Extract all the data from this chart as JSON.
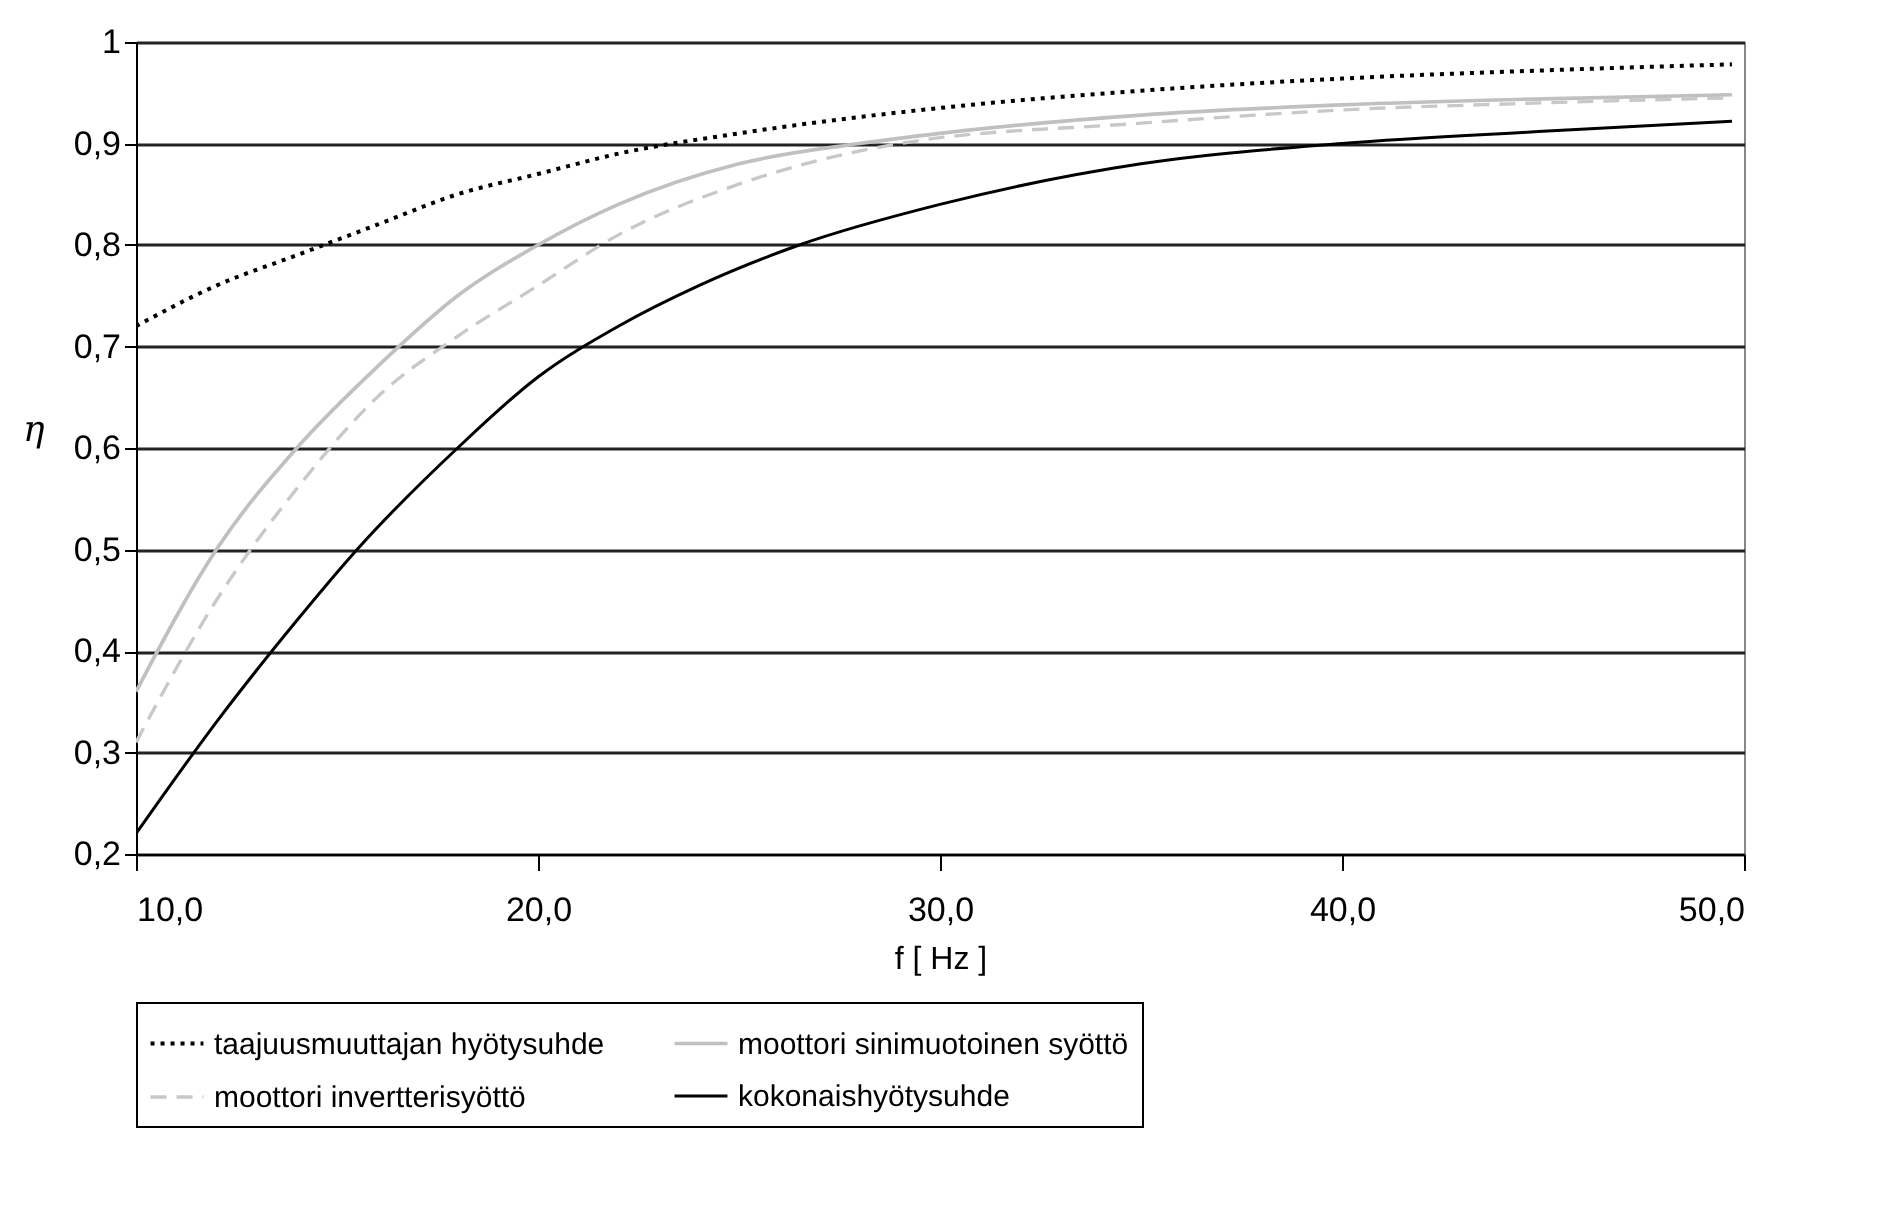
{
  "chart_data": {
    "type": "line",
    "xlabel": "f [ Hz ]",
    "ylabel": "η",
    "xlim": [
      10,
      50
    ],
    "ylim": [
      0.2,
      1
    ],
    "xticks": [
      {
        "value": 10,
        "label": "10,0"
      },
      {
        "value": 20,
        "label": "20,0"
      },
      {
        "value": 30,
        "label": "30,0"
      },
      {
        "value": 40,
        "label": "40,0"
      },
      {
        "value": 50,
        "label": "50,0"
      }
    ],
    "yticks": [
      {
        "value": 0.2,
        "label": "0,2"
      },
      {
        "value": 0.3,
        "label": "0,3"
      },
      {
        "value": 0.4,
        "label": "0,4"
      },
      {
        "value": 0.5,
        "label": "0,5"
      },
      {
        "value": 0.6,
        "label": "0,6"
      },
      {
        "value": 0.7,
        "label": "0,7"
      },
      {
        "value": 0.8,
        "label": "0,8"
      },
      {
        "value": 0.9,
        "label": "0,9"
      },
      1
    ],
    "grid": "y",
    "legend": "bottom",
    "series": [
      {
        "name": "taajuusmuuttajan hyötysuhde",
        "color": "#000000",
        "line_style": "dotted",
        "x": [
          10,
          12,
          14,
          16,
          18,
          20,
          22,
          25,
          30,
          35,
          40,
          45,
          49.7
        ],
        "values": [
          0.72,
          0.76,
          0.79,
          0.82,
          0.85,
          0.87,
          0.89,
          0.91,
          0.935,
          0.952,
          0.964,
          0.972,
          0.978
        ]
      },
      {
        "name": "moottori sinimuotoinen syöttö",
        "color": "#c0c0c0",
        "line_style": "solid",
        "x": [
          10,
          12,
          14,
          16,
          18,
          20,
          22,
          25,
          28,
          30,
          35,
          40,
          45,
          49.7
        ],
        "values": [
          0.36,
          0.5,
          0.6,
          0.68,
          0.75,
          0.8,
          0.84,
          0.88,
          0.9,
          0.91,
          0.928,
          0.938,
          0.944,
          0.948
        ]
      },
      {
        "name": "moottori invertterisyöttö",
        "color": "#c8c8c8",
        "line_style": "dashed",
        "x": [
          10,
          12,
          14,
          16,
          18,
          20,
          22,
          25,
          29,
          35,
          40,
          45,
          49.7
        ],
        "values": [
          0.31,
          0.45,
          0.56,
          0.65,
          0.71,
          0.76,
          0.81,
          0.86,
          0.9,
          0.92,
          0.933,
          0.94,
          0.945
        ]
      },
      {
        "name": "kokonaishyötysuhde",
        "color": "#000000",
        "line_style": "solid",
        "x": [
          10,
          12,
          14,
          15.5,
          18,
          20,
          22,
          24,
          26.5,
          30,
          35,
          40,
          45,
          49.7
        ],
        "values": [
          0.22,
          0.33,
          0.43,
          0.5,
          0.6,
          0.67,
          0.72,
          0.76,
          0.8,
          0.84,
          0.88,
          0.9,
          0.912,
          0.922
        ]
      }
    ]
  }
}
